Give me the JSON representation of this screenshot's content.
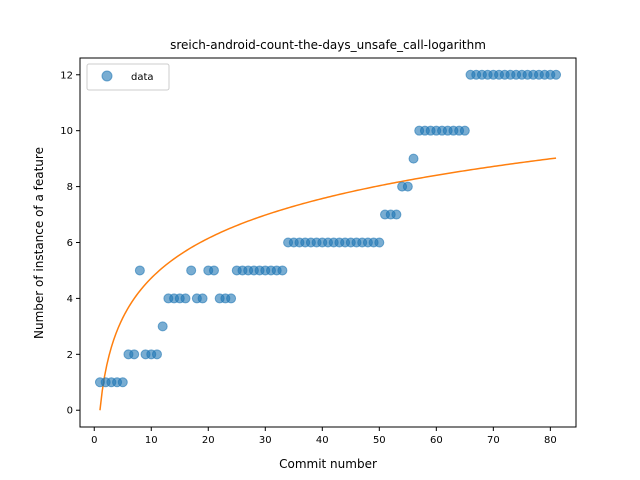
{
  "chart_data": {
    "type": "scatter",
    "title": "sreich-android-count-the-days_unsafe_call-logarithm",
    "xlabel": "Commit number",
    "ylabel": "Number of instance of a feature",
    "xlim": [
      -2.5,
      84.5
    ],
    "ylim": [
      -0.6,
      12.6
    ],
    "xticks": [
      0,
      10,
      20,
      30,
      40,
      50,
      60,
      70,
      80
    ],
    "yticks": [
      0,
      2,
      4,
      6,
      8,
      10,
      12
    ],
    "grid": false,
    "legend_position": "top-left",
    "series": [
      {
        "name": "data",
        "kind": "scatter",
        "color": "#1f77b4",
        "x": [
          1,
          2,
          3,
          4,
          5,
          6,
          7,
          8,
          9,
          10,
          11,
          12,
          13,
          14,
          15,
          16,
          17,
          18,
          19,
          20,
          21,
          22,
          23,
          24,
          25,
          26,
          27,
          28,
          29,
          30,
          31,
          32,
          33,
          34,
          35,
          36,
          37,
          38,
          39,
          40,
          41,
          42,
          43,
          44,
          45,
          46,
          47,
          48,
          49,
          50,
          51,
          52,
          53,
          54,
          55,
          56,
          57,
          58,
          59,
          60,
          61,
          62,
          63,
          64,
          65,
          66,
          67,
          68,
          69,
          70,
          71,
          72,
          73,
          74,
          75,
          76,
          77,
          78,
          79,
          80,
          81
        ],
        "y": [
          1,
          1,
          1,
          1,
          1,
          2,
          2,
          5,
          2,
          2,
          2,
          3,
          4,
          4,
          4,
          4,
          5,
          4,
          4,
          5,
          5,
          4,
          4,
          4,
          5,
          5,
          5,
          5,
          5,
          5,
          5,
          5,
          5,
          6,
          6,
          6,
          6,
          6,
          6,
          6,
          6,
          6,
          6,
          6,
          6,
          6,
          6,
          6,
          6,
          6,
          7,
          7,
          7,
          8,
          8,
          9,
          10,
          10,
          10,
          10,
          10,
          10,
          10,
          10,
          10,
          12,
          12,
          12,
          12,
          12,
          12,
          12,
          12,
          12,
          12,
          12,
          12,
          12,
          12,
          12,
          12
        ]
      },
      {
        "kind": "line",
        "color": "#ff7f0e",
        "fit": "logarithmic",
        "x_range": [
          1,
          81
        ],
        "y_at_x1": 0,
        "y_at_x81": 9.02
      }
    ]
  }
}
